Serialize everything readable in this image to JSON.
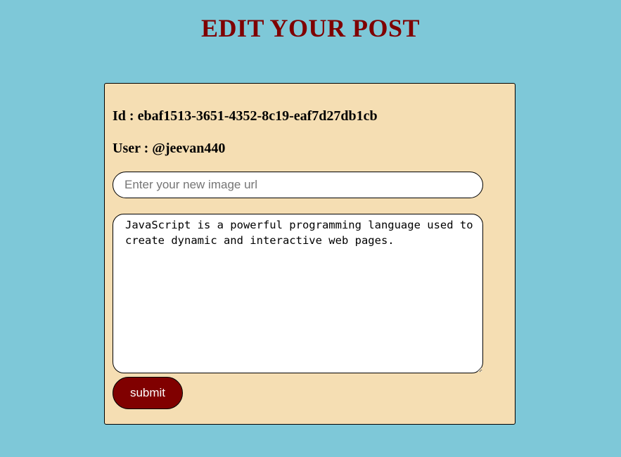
{
  "page": {
    "title": "EDIT YOUR POST"
  },
  "post": {
    "id_text": "Id : ebaf1513-3651-4352-8c19-eaf7d27db1cb",
    "user_text": "User : @jeevan440"
  },
  "form": {
    "image_url": {
      "value": "",
      "placeholder": "Enter your new image url"
    },
    "content": {
      "value": "JavaScript is a powerful programming language used to create dynamic and interactive web pages."
    },
    "submit_label": "submit"
  },
  "colors": {
    "background": "#7ec8d8",
    "card": "#f5deb3",
    "title": "#7f0000",
    "button": "#800000"
  }
}
